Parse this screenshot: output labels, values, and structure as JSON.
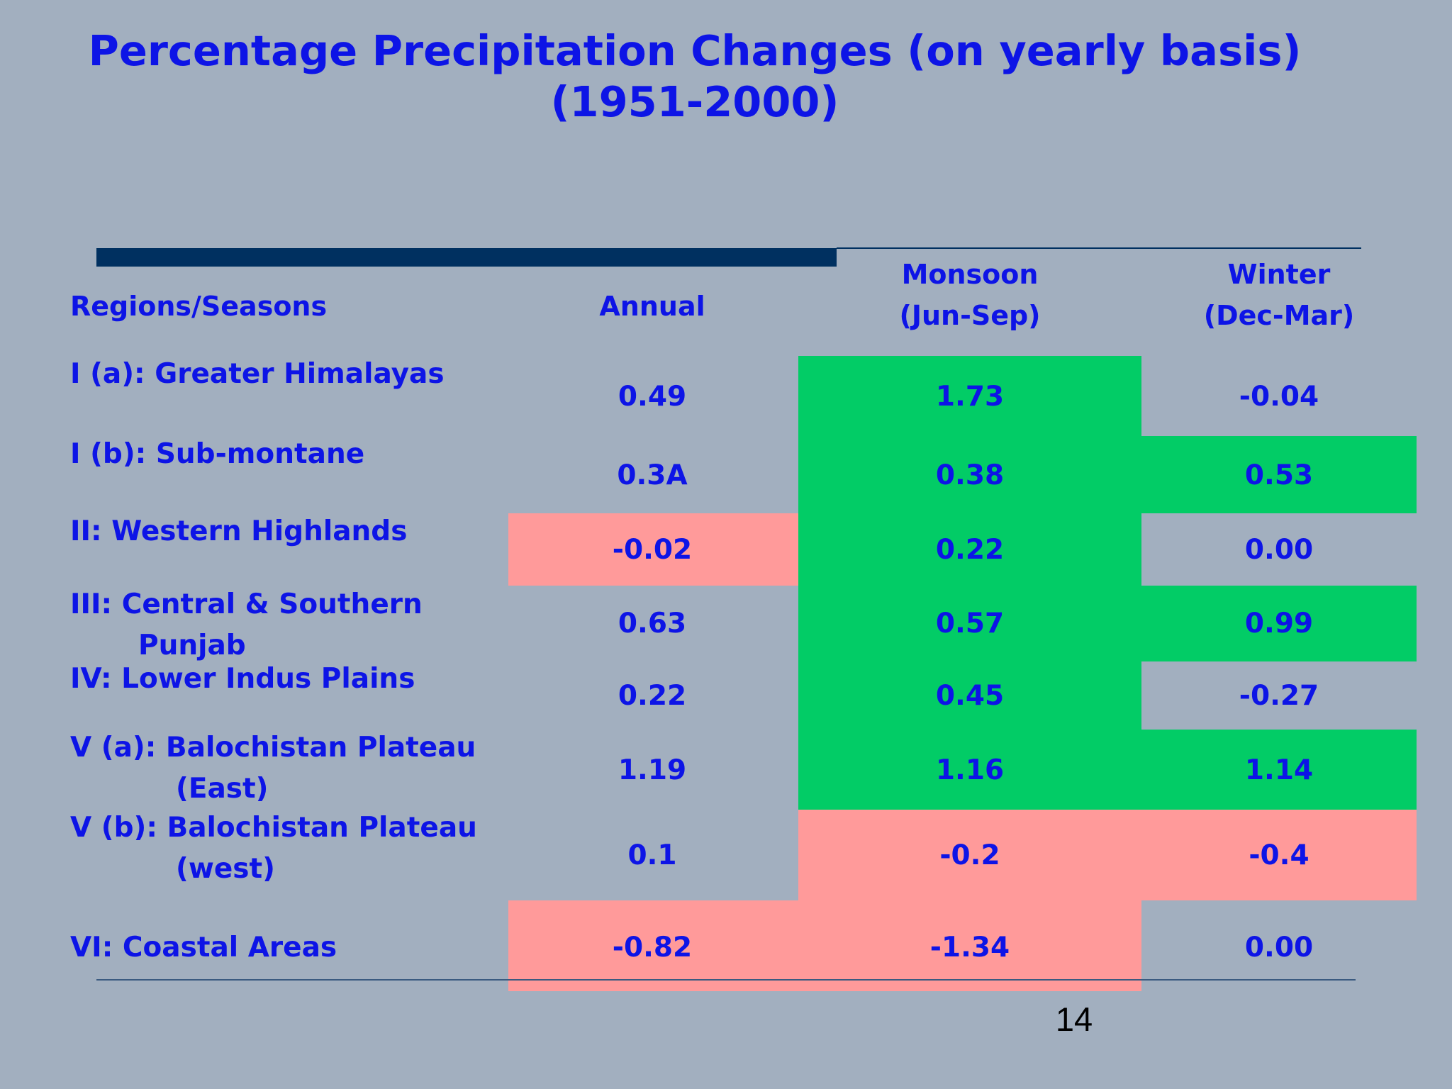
{
  "title": {
    "line1": "Percentage Precipitation Changes (on yearly basis)",
    "line2": "(1951-2000)"
  },
  "table": {
    "columns": {
      "region": "Regions/Seasons",
      "annual": "Annual",
      "monsoon_1": "Monsoon",
      "monsoon_2": "(Jun-Sep)",
      "winter_1": "Winter",
      "winter_2": "(Dec-Mar)"
    },
    "rows": [
      {
        "region_1": "I (a): Greater Himalayas",
        "region_2": "",
        "annual": "0.49",
        "monsoon": "1.73",
        "winter": "-0.04"
      },
      {
        "region_1": "I (b): Sub-montane",
        "region_2": "",
        "annual": "0.3A",
        "monsoon": "0.38",
        "winter": "0.53"
      },
      {
        "region_1": "II: Western Highlands",
        "region_2": "",
        "annual": "-0.02",
        "monsoon": "0.22",
        "winter": "0.00"
      },
      {
        "region_1": "III: Central & Southern",
        "region_2": "Punjab",
        "annual": "0.63",
        "monsoon": "0.57",
        "winter": "0.99"
      },
      {
        "region_1": "IV: Lower Indus Plains",
        "region_2": "",
        "annual": "0.22",
        "monsoon": "0.45",
        "winter": "-0.27"
      },
      {
        "region_1": "V (a): Balochistan Plateau",
        "region_2": "(East)",
        "annual": "1.19",
        "monsoon": "1.16",
        "winter": "1.14"
      },
      {
        "region_1": "V (b): Balochistan Plateau",
        "region_2": "(west)",
        "annual": "0.1",
        "monsoon": "-0.2",
        "winter": "-0.4"
      },
      {
        "region_1": "VI: Coastal Areas",
        "region_2": "",
        "annual": "-0.82",
        "monsoon": "-1.34",
        "winter": "0.00"
      }
    ],
    "colors": {
      "increase": "#02cc66",
      "decrease": "#ff9a9a",
      "text": "#0d14e6"
    }
  },
  "slide_number": "14"
}
